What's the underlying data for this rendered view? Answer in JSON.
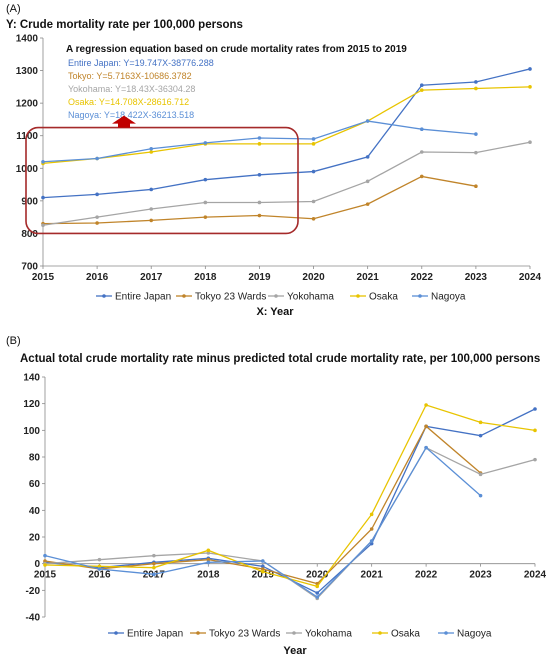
{
  "colors": {
    "Entire Japan": "#4472c4",
    "Tokyo 23 Wards": "#c0842a",
    "Yokohama": "#a5a5a5",
    "Osaka": "#e8c400",
    "Nagoya": "#5b8fd6",
    "highlight_box": "#a52a2a",
    "arrow": "#c00000"
  },
  "chart_data": [
    {
      "type": "line",
      "panel_label": "(A)",
      "title": "Y: Crude mortality rate per 100,000 persons",
      "xlabel": "X: Year",
      "ylabel": "",
      "ylim": [
        700,
        1400
      ],
      "yticks": [
        700,
        800,
        900,
        1000,
        1100,
        1200,
        1300,
        1400
      ],
      "x": [
        2015,
        2016,
        2017,
        2018,
        2019,
        2020,
        2021,
        2022,
        2023,
        2024
      ],
      "grid": false,
      "legend_position": "bottom",
      "annotation_title": "A regression equation based on crude mortality rates from 2015 to 2019",
      "equations": [
        {
          "name": "Entire Japan",
          "text": "Entire Japan: Y=19.747X-38776.288"
        },
        {
          "name": "Tokyo 23 Wards",
          "text": "Tokyo: Y=5.7163X-10686.3782"
        },
        {
          "name": "Yokohama",
          "text": "Yokohama: Y=18.43X-36304.28"
        },
        {
          "name": "Osaka",
          "text": "Osaka: Y=14.708X-28616.712"
        },
        {
          "name": "Nagoya",
          "text": "Nagoya: Y=18.422X-36213.518"
        }
      ],
      "series": [
        {
          "name": "Entire Japan",
          "values": [
            910,
            920,
            935,
            965,
            980,
            990,
            1035,
            1255,
            1265,
            1305
          ]
        },
        {
          "name": "Tokyo 23 Wards",
          "values": [
            830,
            832,
            840,
            850,
            855,
            845,
            890,
            975,
            945,
            null
          ]
        },
        {
          "name": "Yokohama",
          "values": [
            825,
            850,
            875,
            895,
            895,
            898,
            960,
            1050,
            1048,
            1080
          ]
        },
        {
          "name": "Osaka",
          "values": [
            1015,
            1030,
            1050,
            1075,
            1075,
            1075,
            1145,
            1240,
            1245,
            1250
          ]
        },
        {
          "name": "Nagoya",
          "values": [
            1020,
            1030,
            1060,
            1078,
            1093,
            1090,
            1145,
            1120,
            1105,
            null
          ]
        }
      ]
    },
    {
      "type": "line",
      "panel_label": "(B)",
      "title": "Actual total crude mortality rate minus predicted total crude mortality rate, per 100,000 persons",
      "xlabel": "Year",
      "ylabel": "",
      "ylim": [
        -40,
        140
      ],
      "yticks": [
        -40,
        -20,
        0,
        20,
        40,
        60,
        80,
        100,
        120,
        140
      ],
      "x": [
        2015,
        2016,
        2017,
        2018,
        2019,
        2020,
        2021,
        2022,
        2023,
        2024
      ],
      "grid": false,
      "legend_position": "bottom",
      "series": [
        {
          "name": "Entire Japan",
          "values": [
            1,
            -3,
            1,
            4,
            -2,
            -22,
            15,
            103,
            96,
            116
          ]
        },
        {
          "name": "Tokyo 23 Wards",
          "values": [
            2,
            -4,
            0,
            3,
            -4,
            -15,
            26,
            103,
            68,
            null
          ]
        },
        {
          "name": "Yokohama",
          "values": [
            0,
            3,
            6,
            8,
            2,
            -26,
            17,
            87,
            67,
            78
          ]
        },
        {
          "name": "Osaka",
          "values": [
            -1,
            -2,
            -3,
            10,
            -6,
            -17,
            37,
            119,
            106,
            100
          ]
        },
        {
          "name": "Nagoya",
          "values": [
            6,
            -4,
            -8,
            1,
            2,
            -25,
            17,
            87,
            51,
            null
          ]
        }
      ]
    }
  ]
}
